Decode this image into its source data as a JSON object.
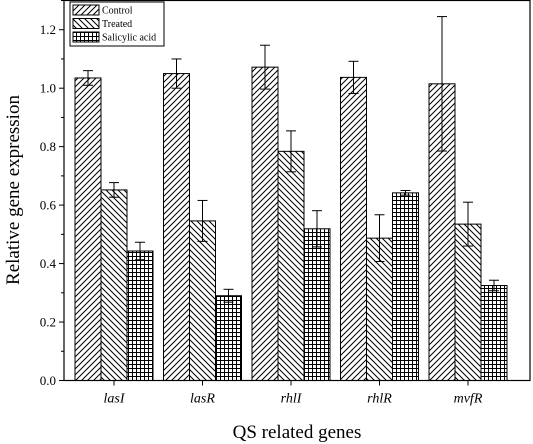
{
  "chart_data": {
    "type": "bar",
    "categories": [
      "lasI",
      "lasR",
      "rhlI",
      "rhlR",
      "mvfR"
    ],
    "series": [
      {
        "name": "Control",
        "pattern": "diag-right",
        "values": [
          1.035,
          1.05,
          1.072,
          1.037,
          1.015
        ],
        "errors": [
          0.025,
          0.05,
          0.075,
          0.055,
          0.23
        ]
      },
      {
        "name": "Treated",
        "pattern": "diag-left",
        "values": [
          0.652,
          0.546,
          0.784,
          0.487,
          0.535
        ],
        "errors": [
          0.025,
          0.07,
          0.07,
          0.08,
          0.075
        ]
      },
      {
        "name": "Salicylic acid",
        "pattern": "grid",
        "values": [
          0.443,
          0.29,
          0.519,
          0.642,
          0.325
        ],
        "errors": [
          0.03,
          0.022,
          0.062,
          0.008,
          0.018
        ]
      }
    ],
    "xlabel": "QS related genes",
    "ylabel": "Relative gene expression",
    "ylim": [
      0.0,
      1.3
    ],
    "yticks": [
      "0.0",
      "0.2",
      "0.4",
      "0.6",
      "0.8",
      "1.0",
      "1.2"
    ],
    "grid": false,
    "legend_position": "top-left"
  }
}
